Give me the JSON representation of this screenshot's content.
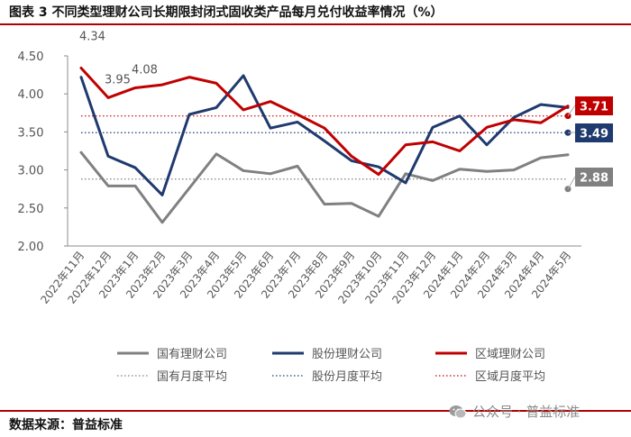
{
  "page": {
    "title": "图表 3 不同类型理财公司长期限封闭式固收类产品每月兑付收益率情况（%）",
    "source": "数据来源：普益标准",
    "watermark": "公众号 · 普益标准"
  },
  "colors": {
    "accent_rule": "#b00000",
    "state_owned": "#808080",
    "joint_stock": "#1f3a6e",
    "regional": "#c00000",
    "axis": "#555555",
    "text": "#555555"
  },
  "icons": [
    "wechat-icon"
  ],
  "chart_data": {
    "type": "line",
    "title": "图表 3 不同类型理财公司长期限封闭式固收类产品每月兑付收益率情况（%）",
    "categories": [
      "2022年11月",
      "2022年12月",
      "2023年1月",
      "2023年2月",
      "2023年3月",
      "2023年4月",
      "2023年5月",
      "2023年6月",
      "2023年7月",
      "2023年8月",
      "2023年9月",
      "2023年10月",
      "2023年11月",
      "2023年12月",
      "2024年1月",
      "2024年2月",
      "2024年3月",
      "2024年4月",
      "2024年5月"
    ],
    "ylim": [
      2.0,
      4.5
    ],
    "yticks": [
      "2.00",
      "2.50",
      "3.00",
      "3.50",
      "4.00",
      "4.50"
    ],
    "grid": false,
    "legend_position": "bottom",
    "series": [
      {
        "name": "国有理财公司",
        "color": "#808080",
        "values": [
          3.23,
          2.79,
          2.79,
          2.31,
          2.76,
          3.21,
          2.99,
          2.95,
          3.05,
          2.55,
          2.56,
          2.39,
          2.95,
          2.86,
          3.01,
          2.98,
          3.0,
          3.16,
          3.2
        ]
      },
      {
        "name": "股份理财公司",
        "color": "#1f3a6e",
        "values": [
          4.22,
          3.18,
          3.03,
          2.67,
          3.73,
          3.82,
          4.24,
          3.55,
          3.63,
          3.38,
          3.12,
          3.04,
          2.83,
          3.56,
          3.71,
          3.33,
          3.69,
          3.86,
          3.82
        ]
      },
      {
        "name": "区域理财公司",
        "color": "#c00000",
        "values": [
          4.34,
          3.95,
          4.08,
          4.12,
          4.22,
          4.14,
          3.79,
          3.9,
          3.73,
          3.55,
          3.18,
          2.94,
          3.33,
          3.37,
          3.25,
          3.56,
          3.66,
          3.62,
          3.84
        ]
      }
    ],
    "averages": [
      {
        "name": "国有月度平均",
        "value": 2.88,
        "color": "#808080",
        "label": "2.88"
      },
      {
        "name": "股份月度平均",
        "value": 3.49,
        "color": "#1f3a6e",
        "label": "3.49"
      },
      {
        "name": "区域月度平均",
        "value": 3.71,
        "color": "#c00000",
        "label": "3.71"
      }
    ],
    "annotations": [
      {
        "series": "区域理财公司",
        "index": 0,
        "text": "4.34"
      },
      {
        "series": "区域理财公司",
        "index": 1,
        "text": "3.95"
      },
      {
        "series": "区域理财公司",
        "index": 2,
        "text": "4.08"
      }
    ],
    "legend": [
      [
        "国有理财公司",
        "股份理财公司",
        "区域理财公司"
      ],
      [
        "国有月度平均",
        "股份月度平均",
        "区域月度平均"
      ]
    ]
  }
}
